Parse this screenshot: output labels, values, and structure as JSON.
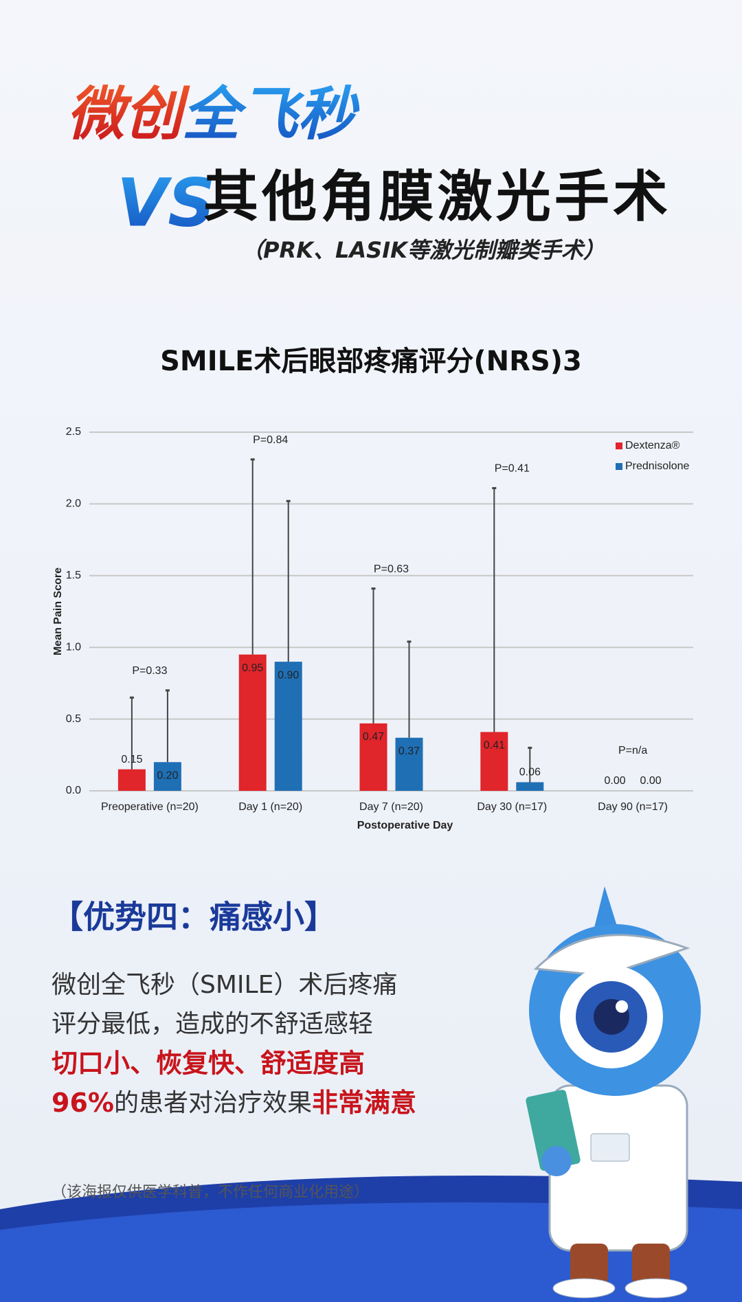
{
  "header": {
    "title_red": "微创",
    "title_blue": "全飞秒",
    "vs": "VS",
    "title_line2": "其他角膜激光手术",
    "subtitle": "（PRK、LASIK等激光制瓣类手术）"
  },
  "chart_data": {
    "type": "bar",
    "title": "SMILE术后眼部疼痛评分(NRS)3",
    "x_label": "Postoperative Day",
    "y_label": "Mean Pain Score",
    "categories": [
      "Preoperative (n=20)",
      "Day 1 (n=20)",
      "Day 7 (n=20)",
      "Day 30 (n=17)",
      "Day 90 (n=17)"
    ],
    "series": [
      {
        "name": "Dextenza®",
        "color": "#e0252b",
        "values": [
          0.15,
          0.95,
          0.47,
          0.41,
          0
        ],
        "value_labels": [
          "0.15",
          "0.95",
          "0.47",
          "0.41",
          "0.00"
        ],
        "errors": [
          0.5,
          1.36,
          0.94,
          1.7,
          null
        ]
      },
      {
        "name": "Prednisolone",
        "color": "#1f6fb5",
        "values": [
          0.2,
          0.9,
          0.37,
          0.06,
          0
        ],
        "value_labels": [
          "0.20",
          "0.90",
          "0.37",
          "0.06",
          "0.00"
        ],
        "errors": [
          0.5,
          1.12,
          0.67,
          0.24,
          null
        ]
      }
    ],
    "annotations": [
      "P=0.33",
      "P=0.84",
      "P=0.63",
      "P=0.41",
      "P=n/a"
    ],
    "ylim": [
      0,
      2.5
    ],
    "yticks": [
      {
        "value": 0,
        "label": "0.0"
      },
      0.5,
      {
        "value": 1,
        "label": "1.0"
      },
      1.5,
      {
        "value": 2,
        "label": "2.0"
      },
      2.5
    ],
    "grid": true,
    "legend": "upper right"
  },
  "section": {
    "heading": "【优势四：痛感小】",
    "line1": "微创全飞秒（SMILE）术后疼痛",
    "line2": "评分最低，造成的不舒适感轻",
    "line3": "切口小、恢复快、舒适度高",
    "line4_red1": "96%",
    "line4_mid": "的患者对治疗效果",
    "line4_red2": "非常满意"
  },
  "footnote": "（该海报仅供医学科普，不作任何商业化用途）"
}
